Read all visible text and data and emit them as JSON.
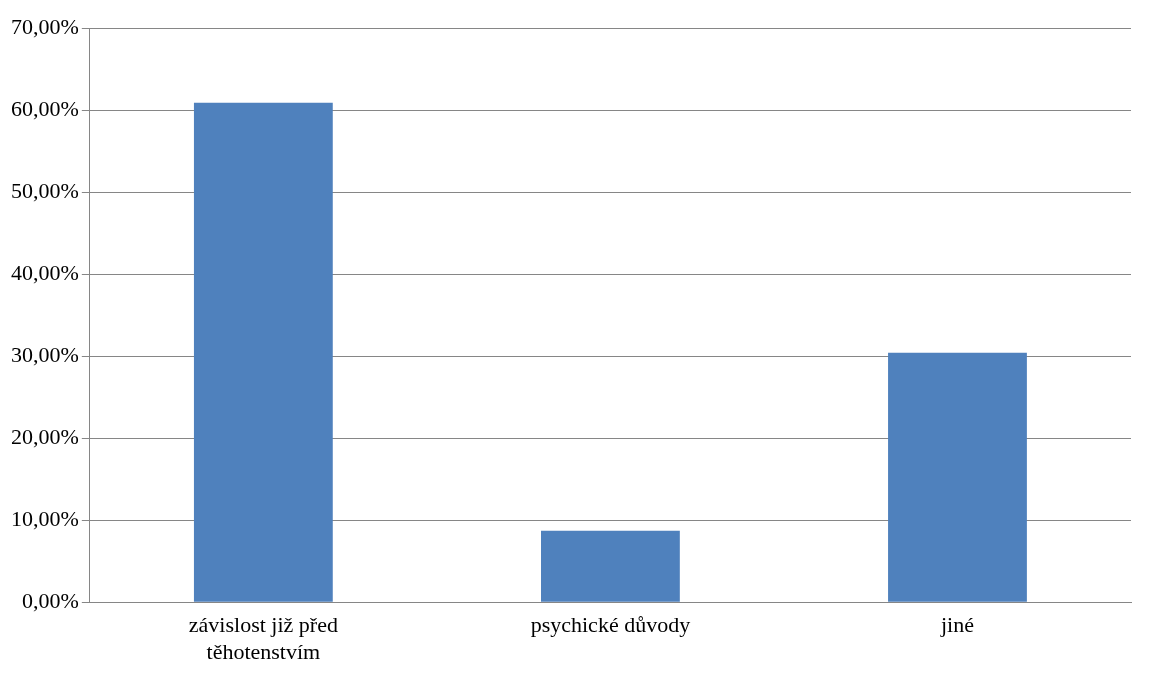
{
  "chart_data": {
    "type": "bar",
    "categories": [
      "závislost již před těhotenstvím",
      "psychické důvody",
      "jiné"
    ],
    "values": [
      60.9,
      8.7,
      30.4
    ],
    "color": "#4f81bd",
    "ylim": [
      0,
      70
    ],
    "yticks": [
      {
        "value": 0,
        "label": "0,00%"
      },
      {
        "value": 10,
        "label": "10,00%"
      },
      {
        "value": 20,
        "label": "20,00%"
      },
      {
        "value": 30,
        "label": "30,00%"
      },
      {
        "value": 40,
        "label": "40,00%"
      },
      {
        "value": 50,
        "label": "50,00%"
      },
      {
        "value": 60,
        "label": "60,00%"
      },
      {
        "value": 70,
        "label": "70,00%"
      }
    ],
    "grid": "y"
  }
}
